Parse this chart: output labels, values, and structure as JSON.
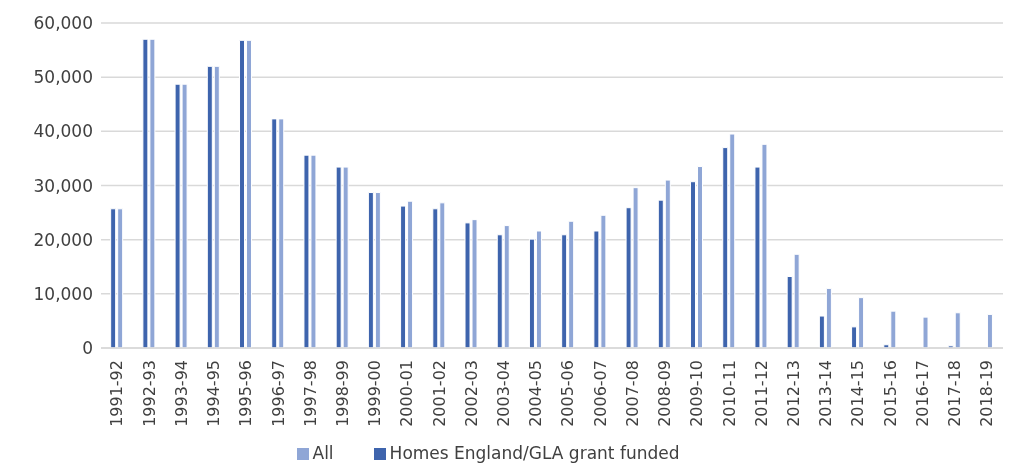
{
  "chart_data": {
    "type": "bar",
    "categories": [
      "1991-92",
      "1992-93",
      "1993-94",
      "1994-95",
      "1995-96",
      "1996-97",
      "1997-98",
      "1998-99",
      "1999-00",
      "2000-01",
      "2001-02",
      "2002-03",
      "2003-04",
      "2004-05",
      "2005-06",
      "2006-07",
      "2007-08",
      "2008-09",
      "2009-10",
      "2010-11",
      "2011-12",
      "2012-13",
      "2013-14",
      "2014-15",
      "2015-16",
      "2016-17",
      "2017-18",
      "2018-19"
    ],
    "series": [
      {
        "name": "Homes England/GLA grant funded",
        "color": "#3e64ad",
        "values": [
          25700,
          57000,
          48700,
          52000,
          56800,
          42300,
          35600,
          33400,
          28700,
          26200,
          25700,
          23100,
          20900,
          20100,
          20900,
          21600,
          25900,
          27300,
          30700,
          37000,
          33400,
          13200,
          5900,
          3900,
          600,
          0,
          400,
          0
        ]
      },
      {
        "name": "All",
        "color": "#8fa6d6",
        "values": [
          25700,
          57000,
          48700,
          52000,
          56800,
          42300,
          35600,
          33400,
          28700,
          27100,
          26800,
          23700,
          22600,
          21600,
          23400,
          24500,
          29600,
          31000,
          33500,
          39500,
          37600,
          17300,
          11000,
          9300,
          6800,
          5700,
          6500,
          6200
        ]
      }
    ],
    "ylim": [
      0,
      60000
    ],
    "yticks": [
      {
        "value": 0,
        "label": "0"
      },
      {
        "value": 10000,
        "label": "10,000"
      },
      {
        "value": 20000,
        "label": "20,000"
      },
      {
        "value": 30000,
        "label": "30,000"
      },
      {
        "value": 40000,
        "label": "40,000"
      },
      {
        "value": 50000,
        "label": "50,000"
      },
      {
        "value": 60000,
        "label": "60,000"
      }
    ],
    "grid": "y",
    "legend": "bottom"
  }
}
